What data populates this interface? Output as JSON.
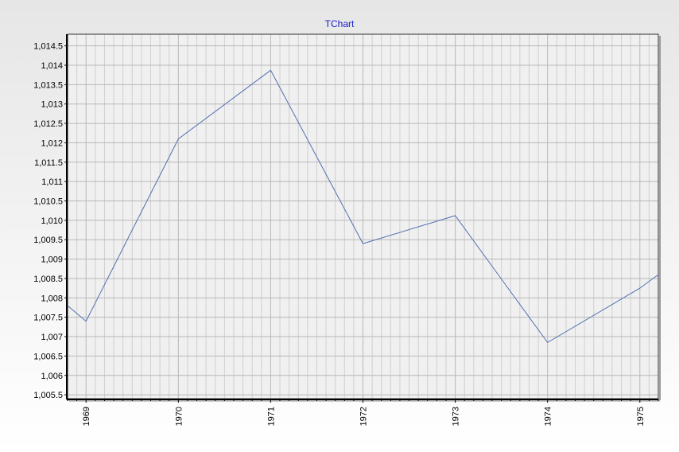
{
  "chart_data": {
    "type": "line",
    "title": "TChart",
    "xlabel": "",
    "ylabel": "",
    "x_range": [
      1968.8,
      1975.2
    ],
    "ylim": [
      1005.4,
      1014.8
    ],
    "yticks": [
      1005.5,
      1006,
      1006.5,
      1007,
      1007.5,
      1008,
      1008.5,
      1009,
      1009.5,
      1010,
      1010.5,
      1011,
      1011.5,
      1012,
      1012.5,
      1013,
      1013.5,
      1014,
      1014.5
    ],
    "ytick_labels": [
      "1,005.5",
      "1,006",
      "1,006.5",
      "1,007",
      "1,007.5",
      "1,008",
      "1,008.5",
      "1,009",
      "1,009.5",
      "1,010",
      "1,010.5",
      "1,011",
      "1,011.5",
      "1,012",
      "1,012.5",
      "1,013",
      "1,013.5",
      "1,014",
      "1,014.5"
    ],
    "xticks": [
      1969,
      1970,
      1971,
      1972,
      1973,
      1974,
      1975
    ],
    "xtick_labels": [
      "1969",
      "1970",
      "1971",
      "1972",
      "1973",
      "1974",
      "1975"
    ],
    "grid": true,
    "legend": "none",
    "series": [
      {
        "color": "#5070b0",
        "x": [
          1968.8,
          1969.0,
          1970.0,
          1971.0,
          1972.0,
          1973.0,
          1974.0,
          1975.0,
          1975.2
        ],
        "y": [
          1007.8,
          1007.4,
          1012.1,
          1013.87,
          1009.4,
          1010.12,
          1006.85,
          1008.25,
          1008.6
        ]
      }
    ]
  }
}
